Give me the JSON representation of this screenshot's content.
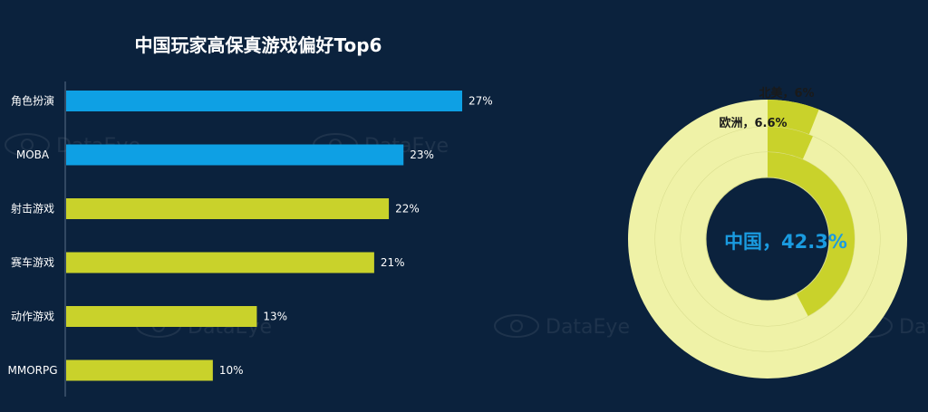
{
  "watermark": "DataEye",
  "colors": {
    "background": "#0b223d",
    "bar_primary": "#0ea0e4",
    "bar_secondary": "#c9d22b",
    "ring_light": "#eff2a7",
    "ring_highlight": "#c9d22b",
    "center_text": "#1a9be0"
  },
  "chart_data": [
    {
      "type": "bar",
      "orientation": "horizontal",
      "title": "中国玩家高保真游戏偏好Top6",
      "categories": [
        "角色扮演",
        "MOBA",
        "射击游戏",
        "赛车游戏",
        "动作游戏",
        "MMORPG"
      ],
      "values": [
        27,
        23,
        22,
        21,
        13,
        10
      ],
      "value_labels": [
        "27%",
        "23%",
        "22%",
        "21%",
        "13%",
        "10%"
      ],
      "highlight_count": 2,
      "xlim": [
        0,
        30
      ],
      "grid": false
    },
    {
      "type": "pie",
      "subtype": "concentric-rings",
      "rings": [
        {
          "label": "北美，6%",
          "value": 6
        },
        {
          "label": "欧洲，6.6%",
          "value": 6.6
        },
        {
          "label": "中国，42.3%",
          "value": 42.3
        }
      ]
    }
  ]
}
